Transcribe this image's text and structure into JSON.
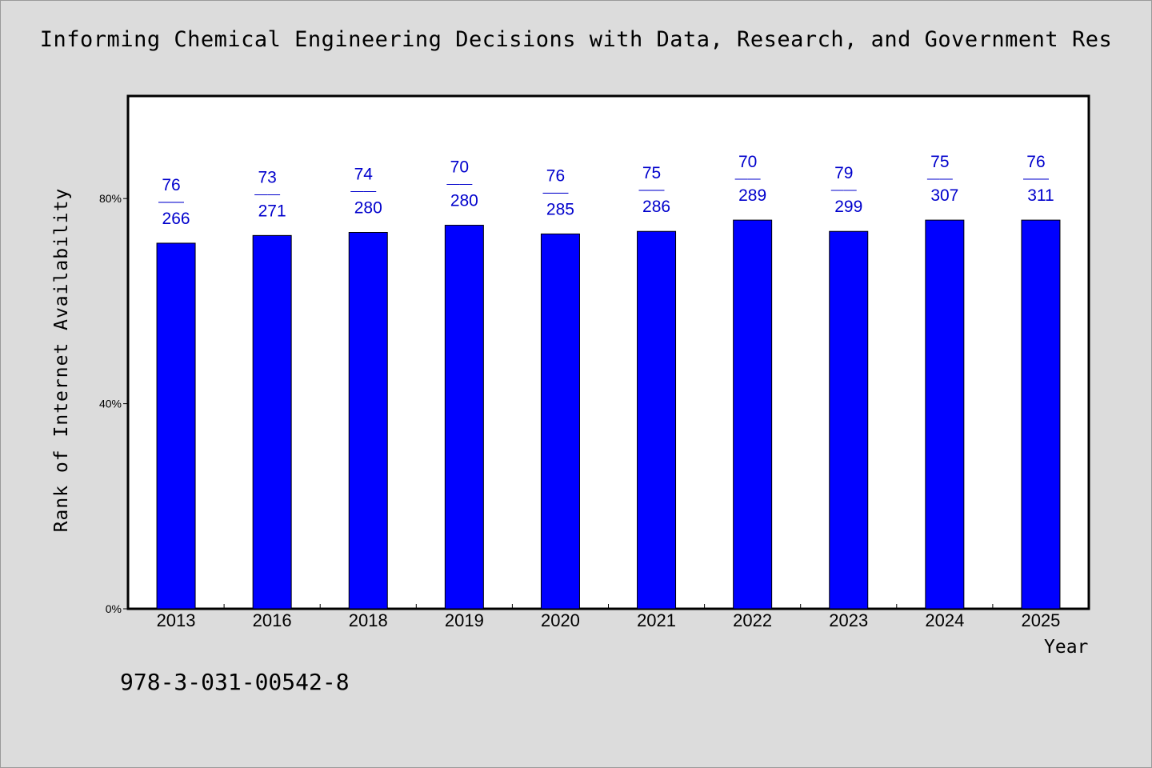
{
  "chart_data": {
    "type": "bar",
    "title": "Informing Chemical Engineering Decisions with Data, Research, and Government Res",
    "xlabel": "Year",
    "ylabel": "Rank of Internet Availability",
    "categories": [
      "2013",
      "2016",
      "2018",
      "2019",
      "2020",
      "2021",
      "2022",
      "2023",
      "2024",
      "2025"
    ],
    "values": [
      71.3,
      72.8,
      73.4,
      74.8,
      73.1,
      73.6,
      75.8,
      73.6,
      75.8,
      75.8
    ],
    "data_labels": [
      {
        "top": "76",
        "bottom": "266"
      },
      {
        "top": "73",
        "bottom": "271"
      },
      {
        "top": "74",
        "bottom": "280"
      },
      {
        "top": "70",
        "bottom": "280"
      },
      {
        "top": "76",
        "bottom": "285"
      },
      {
        "top": "75",
        "bottom": "286"
      },
      {
        "top": "70",
        "bottom": "289"
      },
      {
        "top": "79",
        "bottom": "299"
      },
      {
        "top": "75",
        "bottom": "307"
      },
      {
        "top": "76",
        "bottom": "311"
      }
    ],
    "label_separator": "——",
    "ylim": [
      0,
      100
    ],
    "yticks": [
      0,
      40,
      80
    ],
    "ytick_labels": [
      "0%",
      "40%",
      "80%"
    ],
    "grid": false,
    "bar_color": "#0000ff",
    "label_color": "#0000cc",
    "footer_text": "978-3-031-00542-8"
  }
}
